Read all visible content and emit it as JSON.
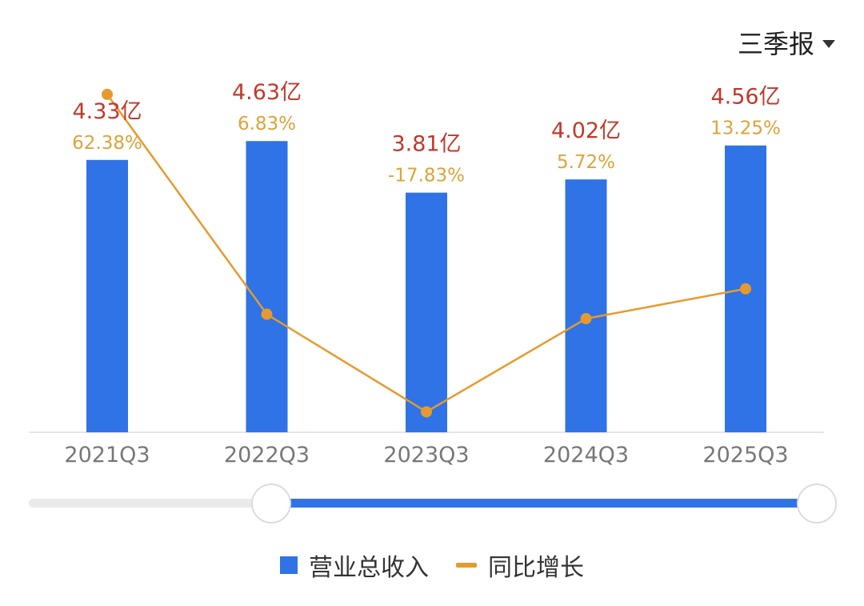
{
  "period_select": {
    "label": "三季报",
    "icon": "caret-down-icon"
  },
  "legend": {
    "revenue_label": "营业总收入",
    "growth_label": "同比增长"
  },
  "colors": {
    "bar": "#2f73e6",
    "line": "#e69a2e",
    "value_label": "#c0392b",
    "pct_label": "#d9a43a",
    "axis_tick": "#777777"
  },
  "slider": {
    "start": 0.3,
    "end": 1.0
  },
  "chart_data": {
    "type": "bar",
    "categories": [
      "2021Q3",
      "2022Q3",
      "2023Q3",
      "2024Q3",
      "2025Q3"
    ],
    "series": [
      {
        "name": "营业总收入",
        "type": "bar",
        "values": [
          4.33,
          4.63,
          3.81,
          4.02,
          4.56
        ],
        "labels": [
          "4.33亿",
          "4.63亿",
          "3.81亿",
          "4.02亿",
          "4.56亿"
        ]
      },
      {
        "name": "同比增长",
        "type": "line",
        "values": [
          62.38,
          6.83,
          -17.83,
          5.72,
          13.25
        ],
        "labels": [
          "62.38%",
          "6.83%",
          "-17.83%",
          "5.72%",
          "13.25%"
        ]
      }
    ],
    "bar_ylim": [
      0,
      5.6
    ],
    "line_ylim": [
      -23,
      66
    ],
    "grid": false,
    "legend_position": "bottom"
  }
}
